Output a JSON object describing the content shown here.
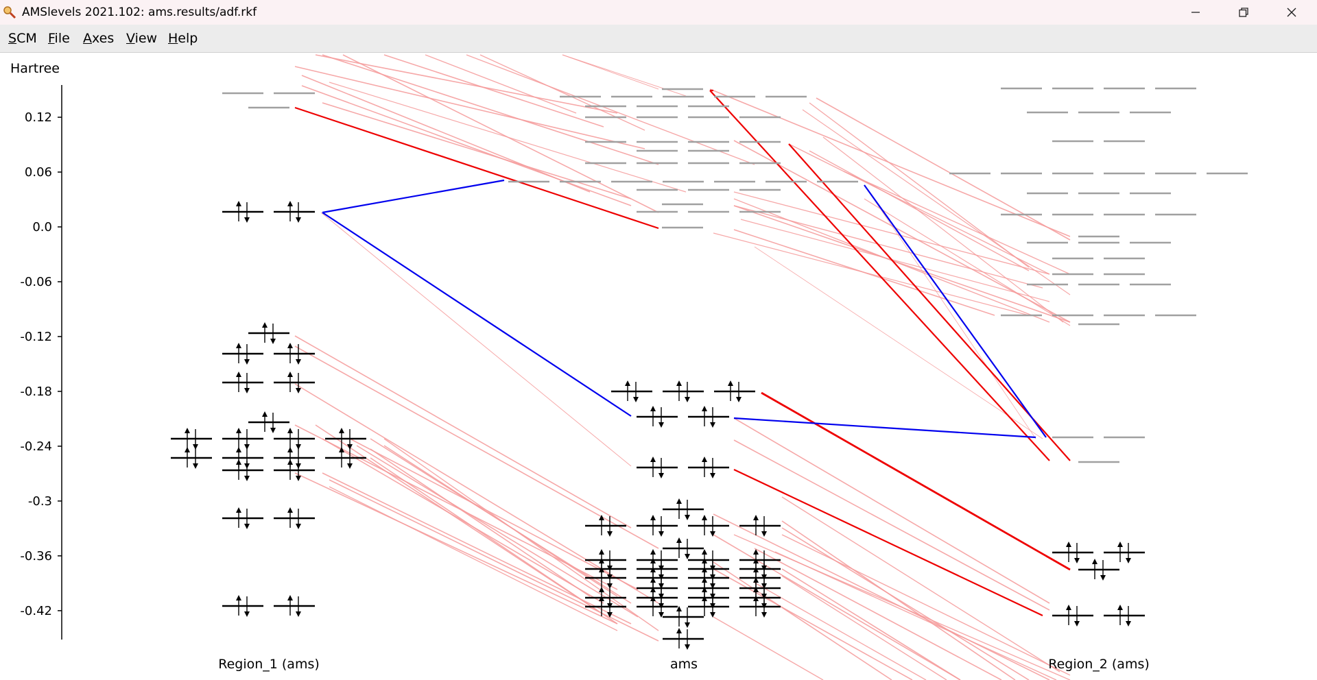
{
  "window": {
    "title": "AMSlevels 2021.102: ams.results/adf.rkf",
    "icons": [
      "app-icon",
      "minimize-icon",
      "restore-icon",
      "close-icon"
    ]
  },
  "menu": [
    {
      "label": "SCM",
      "underline": "S"
    },
    {
      "label": "File",
      "underline": "F"
    },
    {
      "label": "Axes",
      "underline": "A"
    },
    {
      "label": "View",
      "underline": "V"
    },
    {
      "label": "Help",
      "underline": "H"
    }
  ],
  "axis": {
    "unit": "Hartree",
    "ticks": [
      "0.12",
      "0.06",
      "0.0",
      "-0.06",
      "-0.12",
      "-0.18",
      "-0.24",
      "-0.3",
      "-0.36",
      "-0.42"
    ]
  },
  "columns": [
    "Region_1 (ams)",
    "ams",
    "Region_2 (ams)"
  ],
  "colors": {
    "occupied": "#000000",
    "virtual": "#a0a0a0",
    "strong_contribution": "#ee0000",
    "highlight": "#0000ee",
    "weak_contribution": "#f59a9a"
  }
}
